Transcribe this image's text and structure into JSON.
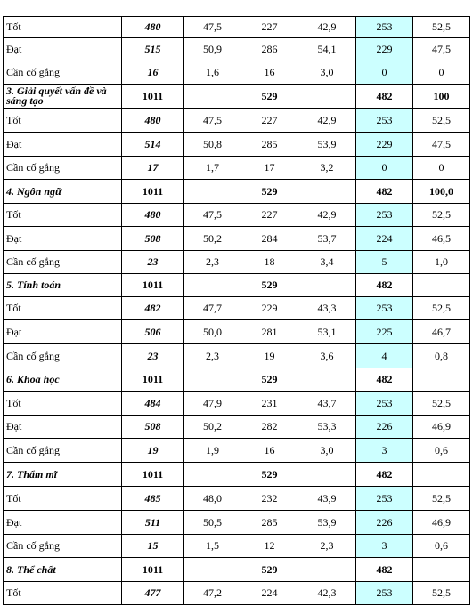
{
  "rows": [
    {
      "kind": "data",
      "cells": [
        "Tốt",
        "480",
        "47,5",
        "227",
        "42,9",
        "253",
        "52,5"
      ]
    },
    {
      "kind": "data",
      "cells": [
        "Đạt",
        "515",
        "50,9",
        "286",
        "54,1",
        "229",
        "47,5"
      ]
    },
    {
      "kind": "data",
      "cells": [
        "Cần cố gắng",
        "16",
        "1,6",
        "16",
        "3,0",
        "0",
        "0"
      ]
    },
    {
      "kind": "section",
      "cells": [
        "3. Giải quyết vấn đề và sáng tạo",
        "1011",
        "",
        "529",
        "",
        "482",
        "100"
      ]
    },
    {
      "kind": "data",
      "cells": [
        "Tốt",
        "480",
        "47,5",
        "227",
        "42,9",
        "253",
        "52,5"
      ]
    },
    {
      "kind": "data",
      "cells": [
        "Đạt",
        "514",
        "50,8",
        "285",
        "53,9",
        "229",
        "47,5"
      ]
    },
    {
      "kind": "data",
      "cells": [
        "Cần cố gắng",
        "17",
        "1,7",
        "17",
        "3,2",
        "0",
        "0"
      ]
    },
    {
      "kind": "section",
      "cells": [
        "4. Ngôn ngữ",
        "1011",
        "",
        "529",
        "",
        "482",
        "100,0"
      ]
    },
    {
      "kind": "data",
      "cells": [
        "Tốt",
        "480",
        "47,5",
        "227",
        "42,9",
        "253",
        "52,5"
      ]
    },
    {
      "kind": "data",
      "cells": [
        "Đạt",
        "508",
        "50,2",
        "284",
        "53,7",
        "224",
        "46,5"
      ]
    },
    {
      "kind": "data",
      "cells": [
        "Cần cố gắng",
        "23",
        "2,3",
        "18",
        "3,4",
        "5",
        "1,0"
      ]
    },
    {
      "kind": "section",
      "cells": [
        "5. Tính toán",
        "1011",
        "",
        "529",
        "",
        "482",
        ""
      ]
    },
    {
      "kind": "data",
      "cells": [
        "Tốt",
        "482",
        "47,7",
        "229",
        "43,3",
        "253",
        "52,5"
      ]
    },
    {
      "kind": "data",
      "cells": [
        "Đạt",
        "506",
        "50,0",
        "281",
        "53,1",
        "225",
        "46,7"
      ]
    },
    {
      "kind": "data",
      "cells": [
        "Cần cố gắng",
        "23",
        "2,3",
        "19",
        "3,6",
        "4",
        "0,8"
      ]
    },
    {
      "kind": "section",
      "cells": [
        "6. Khoa học",
        "1011",
        "",
        "529",
        "",
        "482",
        ""
      ]
    },
    {
      "kind": "data",
      "cells": [
        "Tốt",
        "484",
        "47,9",
        "231",
        "43,7",
        "253",
        "52,5"
      ]
    },
    {
      "kind": "data",
      "cells": [
        "Đạt",
        "508",
        "50,2",
        "282",
        "53,3",
        "226",
        "46,9"
      ]
    },
    {
      "kind": "data",
      "cells": [
        "Cần cố gắng",
        "19",
        "1,9",
        "16",
        "3,0",
        "3",
        "0,6"
      ]
    },
    {
      "kind": "section",
      "cells": [
        "7. Thẩm mĩ",
        "1011",
        "",
        "529",
        "",
        "482",
        ""
      ]
    },
    {
      "kind": "data",
      "cells": [
        "Tốt",
        "485",
        "48,0",
        "232",
        "43,9",
        "253",
        "52,5"
      ]
    },
    {
      "kind": "data",
      "cells": [
        "Đạt",
        "511",
        "50,5",
        "285",
        "53,9",
        "226",
        "46,9"
      ]
    },
    {
      "kind": "data",
      "cells": [
        "Cần cố gắng",
        "15",
        "1,5",
        "12",
        "2,3",
        "3",
        "0,6"
      ]
    },
    {
      "kind": "section",
      "cells": [
        "8. Thể chất",
        "1011",
        "",
        "529",
        "",
        "482",
        ""
      ]
    },
    {
      "kind": "data",
      "cells": [
        "Tốt",
        "477",
        "47,2",
        "224",
        "42,3",
        "253",
        "52,5"
      ]
    }
  ]
}
